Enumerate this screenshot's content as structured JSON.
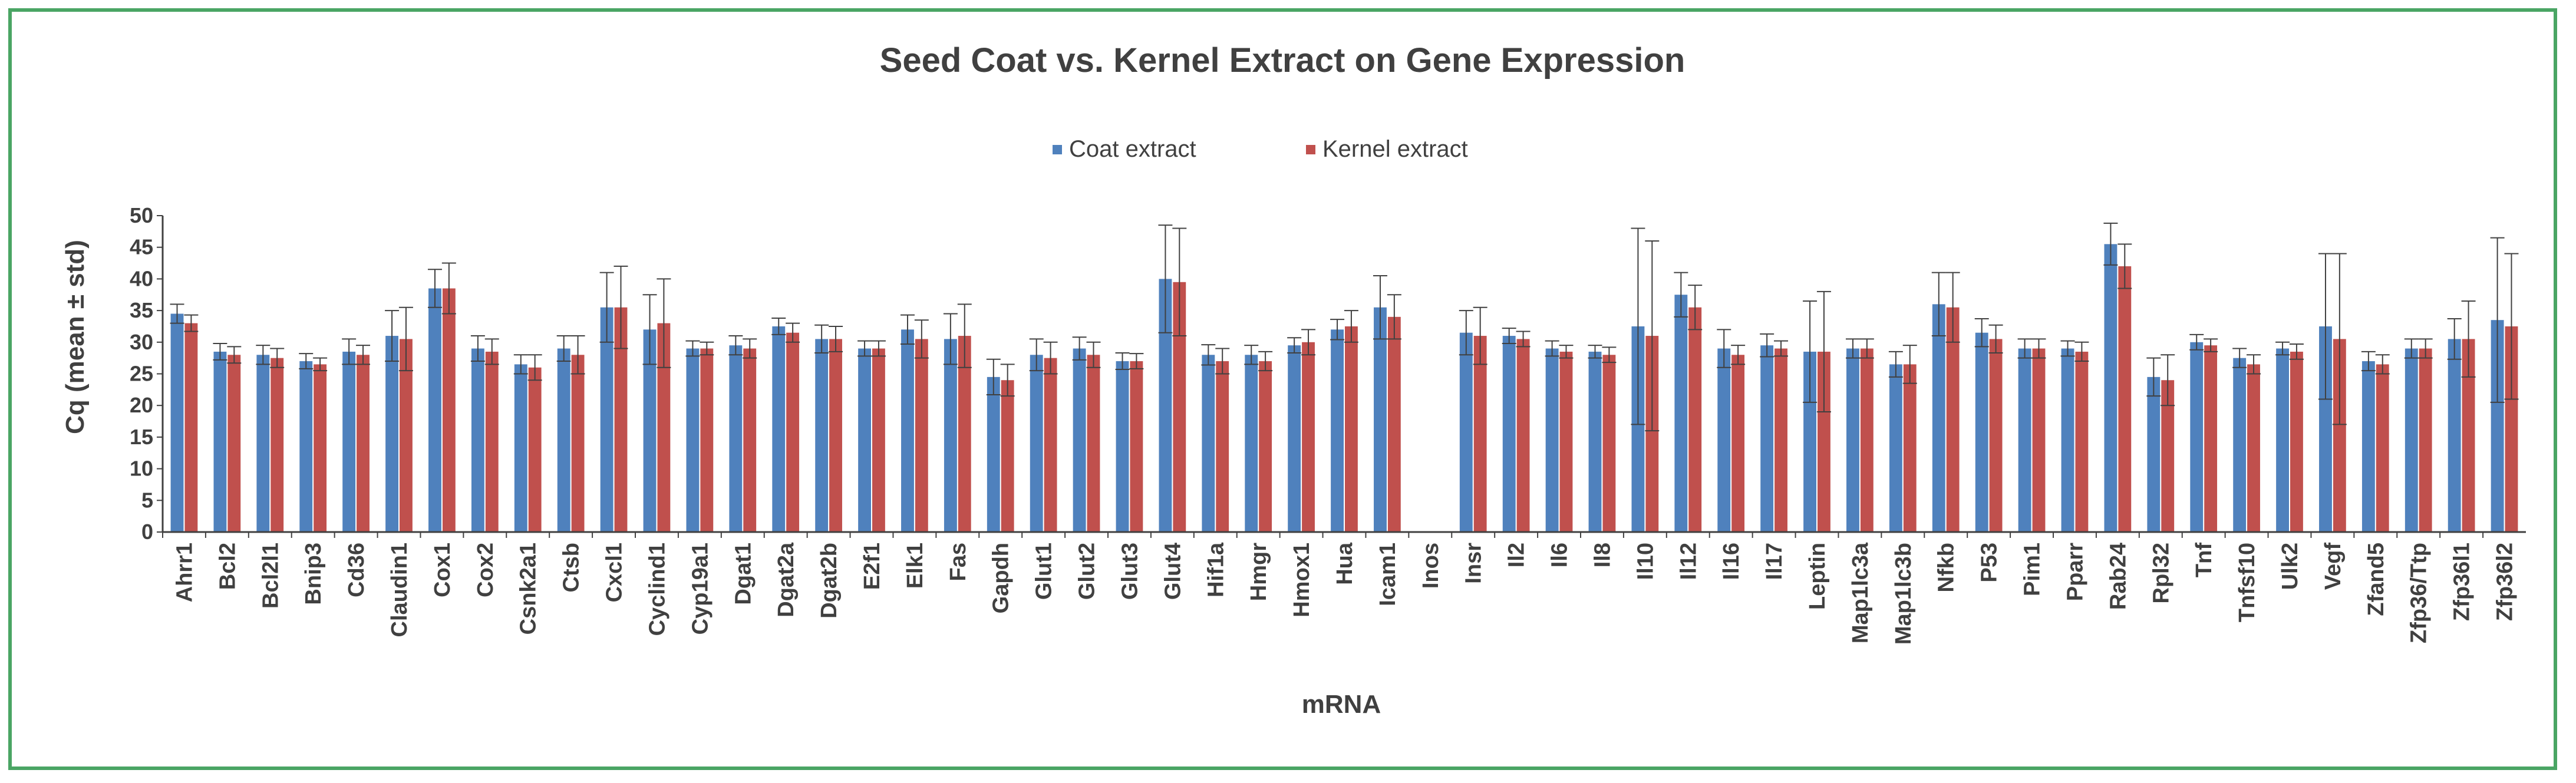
{
  "colors": {
    "coat": "#4f81bd",
    "kernel": "#c0504d",
    "frame": "#4aa564",
    "axis": "#404040",
    "error": "#404040"
  },
  "chart_data": {
    "type": "bar",
    "title": "Seed Coat vs. Kernel Extract on Gene Expression",
    "xlabel": "mRNA",
    "ylabel": "Cq (mean ± std)",
    "ylim": [
      0,
      50
    ],
    "yticks": [
      0,
      5,
      10,
      15,
      20,
      25,
      30,
      35,
      40,
      45,
      50
    ],
    "legend_position": "top-center",
    "categories": [
      "Ahrr1",
      "Bcl2",
      "Bcl2l1",
      "Bnip3",
      "Cd36",
      "Claudin1",
      "Cox1",
      "Cox2",
      "Csnk2a1",
      "Ctsb",
      "Cxcl1",
      "Cyclind1",
      "Cyp19a1",
      "Dgat1",
      "Dgat2a",
      "Dgat2b",
      "E2f1",
      "Elk1",
      "Fas",
      "Gapdh",
      "Glut1",
      "Glut2",
      "Glut3",
      "Glut4",
      "Hif1a",
      "Hmgr",
      "Hmox1",
      "Hua",
      "Icam1",
      "Inos",
      "Insr",
      "Il2",
      "Il6",
      "Il8",
      "Il10",
      "Il12",
      "Il16",
      "Il17",
      "Leptin",
      "Map1lc3a",
      "Map1lc3b",
      "Nfkb",
      "P53",
      "Pim1",
      "Pparr",
      "Rab24",
      "Rpl32",
      "Tnf",
      "Tnfsf10",
      "Ulk2",
      "Vegf",
      "Zfand5",
      "Zfp36/Ttp",
      "Zfp36l1",
      "Zfp36l2"
    ],
    "series": [
      {
        "name": "Coat extract",
        "values": [
          34.5,
          28.5,
          28,
          27,
          28.5,
          31,
          38.5,
          29,
          26.5,
          29,
          35.5,
          32,
          29,
          29.5,
          32.5,
          30.5,
          29,
          32,
          30.5,
          24.5,
          28,
          29,
          27,
          40,
          28,
          28,
          29.5,
          32,
          35.5,
          null,
          31.5,
          31,
          29,
          28.5,
          32.5,
          37.5,
          29,
          29.5,
          28.5,
          29,
          26.5,
          36,
          31.5,
          29,
          29,
          45.5,
          24.5,
          30,
          27.5,
          29,
          32.5,
          27,
          29,
          30.5,
          33.5
        ],
        "errors": [
          1.5,
          1.3,
          1.5,
          1.2,
          2,
          4,
          3,
          2,
          1.5,
          2,
          5.5,
          5.5,
          1.2,
          1.5,
          1.3,
          2.2,
          1.2,
          2.3,
          4,
          2.8,
          2.5,
          1.8,
          1.3,
          8.5,
          1.6,
          1.5,
          1.2,
          1.6,
          5,
          null,
          3.5,
          1.2,
          1.2,
          1,
          15.5,
          3.5,
          3,
          1.8,
          8,
          1.5,
          2,
          5,
          2.2,
          1.5,
          1.2,
          3.3,
          3,
          1.2,
          1.5,
          1,
          11.5,
          1.5,
          1.5,
          3.2,
          13
        ]
      },
      {
        "name": "Kernel extract",
        "values": [
          33,
          28,
          27.5,
          26.5,
          28,
          30.5,
          38.5,
          28.5,
          26,
          28,
          35.5,
          33,
          29,
          29,
          31.5,
          30.5,
          29,
          30.5,
          31,
          24,
          27.5,
          28,
          27,
          39.5,
          27,
          27,
          30,
          32.5,
          34,
          null,
          31,
          30.5,
          28.5,
          28,
          31,
          35.5,
          28,
          29,
          28.5,
          29,
          26.5,
          35.5,
          30.5,
          29,
          28.5,
          42,
          24,
          29.5,
          26.5,
          28.5,
          30.5,
          26.5,
          29,
          30.5,
          32.5
        ],
        "errors": [
          1.3,
          1.3,
          1.5,
          1,
          1.5,
          5,
          4,
          2,
          2,
          3,
          6.5,
          7,
          1,
          1.5,
          1.5,
          2,
          1.2,
          3,
          5,
          2.5,
          2.5,
          2,
          1.2,
          8.5,
          2,
          1.5,
          2,
          2.5,
          3.5,
          null,
          4.5,
          1.2,
          1,
          1.2,
          15,
          3.5,
          1.5,
          1.2,
          9.5,
          1.5,
          3,
          5.5,
          2.2,
          1.5,
          1.5,
          3.5,
          4,
          1,
          1.5,
          1.2,
          13.5,
          1.5,
          1.5,
          6,
          11.5
        ]
      }
    ]
  }
}
